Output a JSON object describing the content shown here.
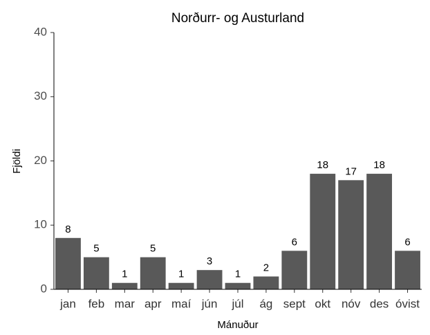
{
  "chart_data": {
    "type": "bar",
    "title": "Norðurr- og Austurland",
    "x_label": "Mánuður",
    "y_label": "Fjöldi",
    "categories": [
      "jan",
      "feb",
      "mar",
      "apr",
      "maí",
      "jún",
      "júl",
      "ág",
      "sept",
      "okt",
      "nóv",
      "des",
      "óvist"
    ],
    "values": [
      8,
      5,
      1,
      5,
      1,
      3,
      1,
      2,
      6,
      18,
      17,
      18,
      6
    ],
    "color": "#595959",
    "ylim": [
      0,
      40
    ],
    "yticks": [
      0,
      10,
      20,
      30,
      40
    ],
    "grid": false
  }
}
